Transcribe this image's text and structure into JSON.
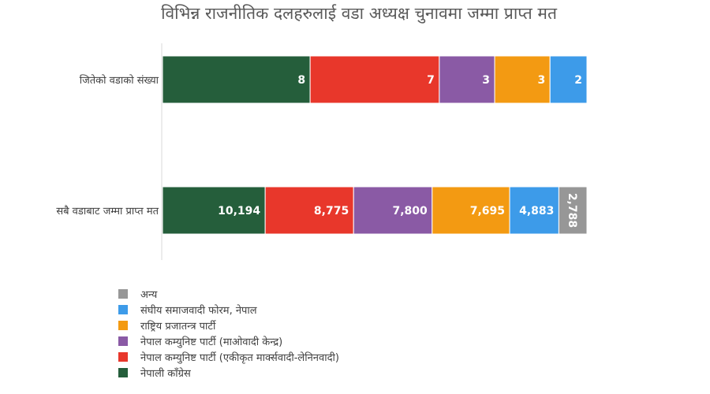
{
  "chart_data": {
    "type": "bar",
    "orientation": "horizontal",
    "stacked": "percent",
    "title": "विभिन्न राजनीतिक दलहरुलाई वडा अध्यक्ष चुनावमा जम्मा प्राप्त मत",
    "categories": [
      "जितेको वडाको संख्या",
      "सबै वडाबाट जम्मा प्राप्त मत"
    ],
    "series": [
      {
        "name": "नेपाली काँग्रेस",
        "values": [
          8,
          10194
        ],
        "labels": [
          "8",
          "10,194"
        ],
        "color": "#255e3b"
      },
      {
        "name": "नेपाल कम्युनिष्ट पार्टी (एकीकृत मार्क्सवादी-लेनिनवादी)",
        "values": [
          7,
          8775
        ],
        "labels": [
          "7",
          "8,775"
        ],
        "color": "#e8372b"
      },
      {
        "name": "नेपाल कम्युनिष्ट पार्टी (माओवादी केन्द्र)",
        "values": [
          3,
          7800
        ],
        "labels": [
          "3",
          "7,800"
        ],
        "color": "#8a5aa5"
      },
      {
        "name": "राष्ट्रिय प्रजातन्त्र पार्टी",
        "values": [
          3,
          7695
        ],
        "labels": [
          "3",
          "7,695"
        ],
        "color": "#f39a12"
      },
      {
        "name": "संघीय समाजवादी फोरम, नेपाल",
        "values": [
          2,
          4883
        ],
        "labels": [
          "2",
          "4,883"
        ],
        "color": "#3d9be9"
      },
      {
        "name": "अन्य",
        "values": [
          0,
          2788
        ],
        "labels": [
          "",
          "2,788"
        ],
        "color": "#979797"
      }
    ],
    "legend_position": "bottom-left",
    "legend_order": "reversed",
    "grid": false
  }
}
